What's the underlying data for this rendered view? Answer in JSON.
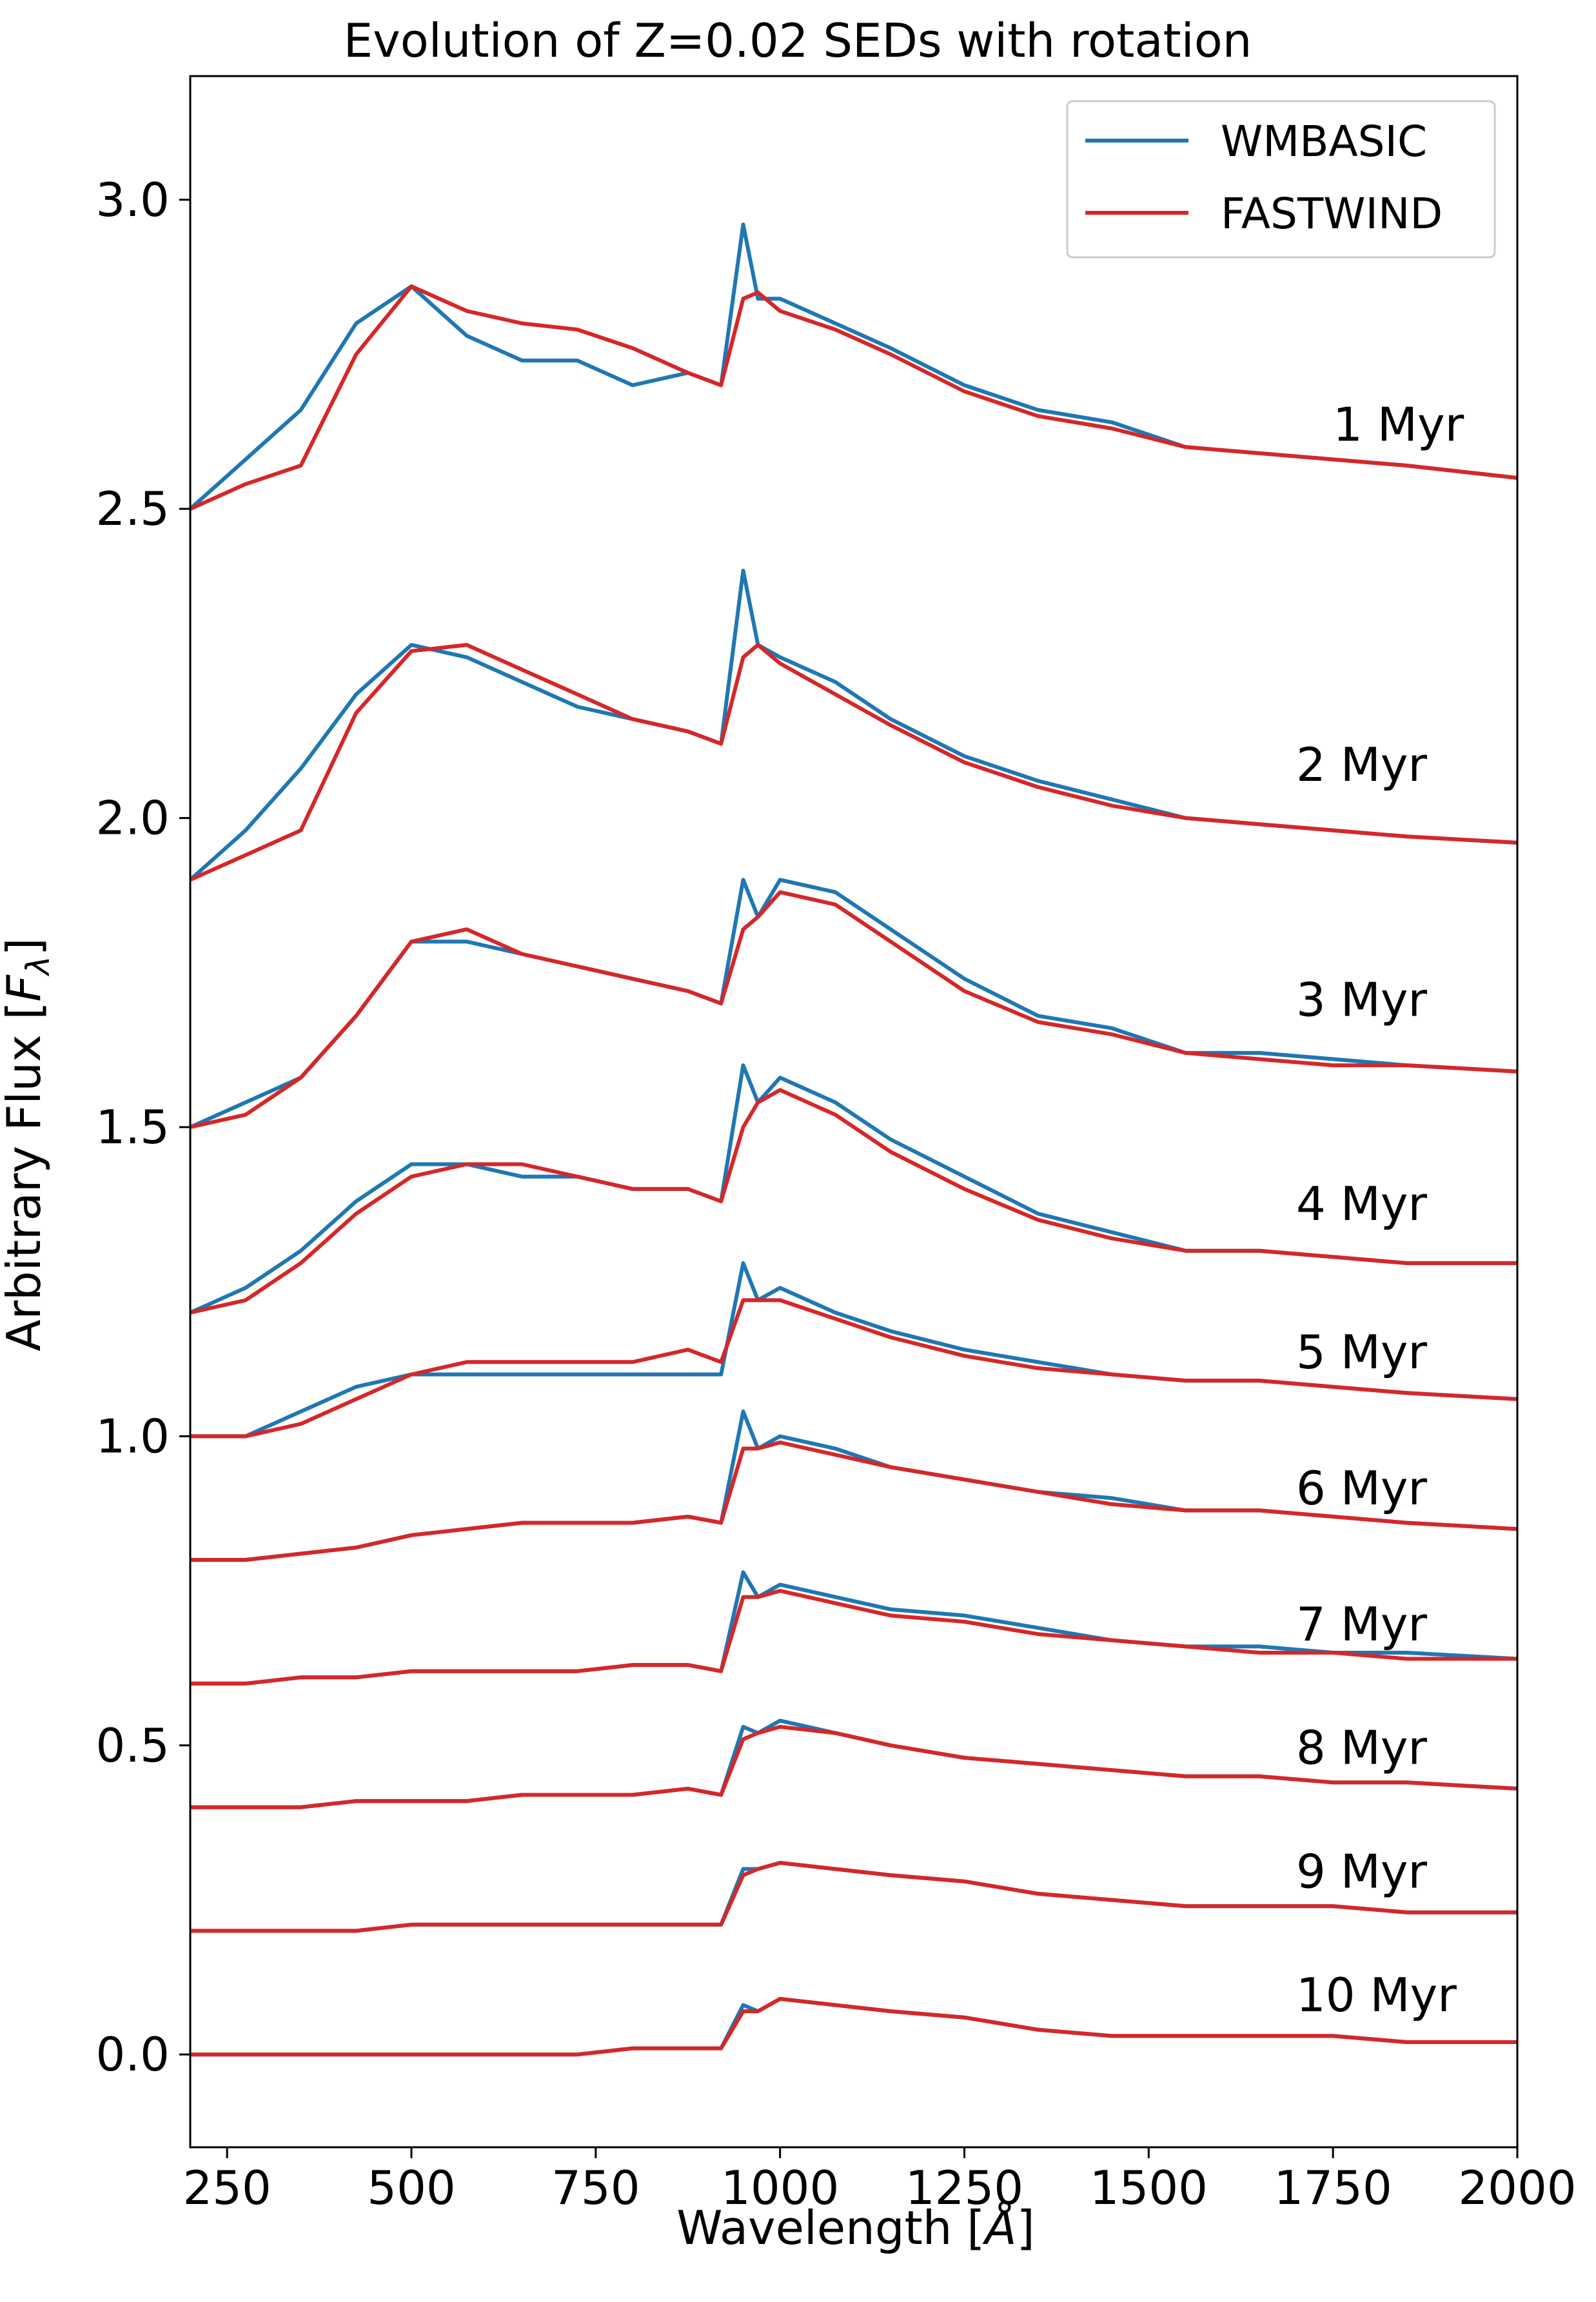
{
  "chart_data": {
    "type": "line",
    "title": "Evolution of Z=0.02 SEDs with rotation",
    "xlabel": "Wavelength [Å]",
    "ylabel": "Arbitrary Flux [F_λ]",
    "ylabel_parts": {
      "main": "Arbitrary Flux [",
      "italic": "F",
      "sub": "λ",
      "end": "]"
    },
    "xlabel_parts": {
      "main": "Wavelength [",
      "italic": "Å",
      "end": "]"
    },
    "xlim": [
      200,
      2000
    ],
    "ylim": [
      -0.15,
      3.2
    ],
    "xticks": [
      250,
      500,
      750,
      1000,
      1250,
      1500,
      1750,
      2000
    ],
    "yticks": [
      0.0,
      0.5,
      1.0,
      1.5,
      2.0,
      2.5,
      3.0
    ],
    "ytick_labels": [
      "0.0",
      "0.5",
      "1.0",
      "1.5",
      "2.0",
      "2.5",
      "3.0"
    ],
    "legend": {
      "position": "top-right",
      "entries": [
        {
          "name": "WMBASIC",
          "color": "#1f77b4"
        },
        {
          "name": "FASTWIND",
          "color": "#d62728"
        }
      ]
    },
    "series_colors": {
      "WMBASIC": "#1f77b4",
      "FASTWIND": "#d62728"
    },
    "x": [
      200,
      275,
      350,
      425,
      500,
      575,
      650,
      725,
      800,
      875,
      920,
      950,
      970,
      1000,
      1075,
      1150,
      1250,
      1350,
      1450,
      1550,
      1650,
      1750,
      1850,
      2000
    ],
    "age_labels": [
      "1 Myr",
      "2 Myr",
      "3 Myr",
      "4 Myr",
      "5 Myr",
      "6 Myr",
      "7 Myr",
      "8 Myr",
      "9 Myr",
      "10 Myr"
    ],
    "label_y": [
      2.61,
      2.06,
      1.68,
      1.35,
      1.11,
      0.89,
      0.67,
      0.47,
      0.27,
      0.07
    ],
    "annotations_x": [
      1750,
      1700,
      1700,
      1700,
      1700,
      1700,
      1700,
      1700,
      1700,
      1700
    ],
    "series": [
      {
        "age": "1 Myr",
        "name": "WMBASIC",
        "values": [
          2.5,
          2.58,
          2.66,
          2.8,
          2.86,
          2.78,
          2.74,
          2.74,
          2.7,
          2.72,
          2.7,
          2.96,
          2.84,
          2.84,
          2.8,
          2.76,
          2.7,
          2.66,
          2.64,
          2.6,
          2.59,
          2.58,
          2.57,
          2.55
        ]
      },
      {
        "age": "1 Myr",
        "name": "FASTWIND",
        "values": [
          2.5,
          2.54,
          2.57,
          2.75,
          2.86,
          2.82,
          2.8,
          2.79,
          2.76,
          2.72,
          2.7,
          2.84,
          2.85,
          2.82,
          2.79,
          2.75,
          2.69,
          2.65,
          2.63,
          2.6,
          2.59,
          2.58,
          2.57,
          2.55
        ]
      },
      {
        "age": "2 Myr",
        "name": "WMBASIC",
        "values": [
          1.9,
          1.98,
          2.08,
          2.2,
          2.28,
          2.26,
          2.22,
          2.18,
          2.16,
          2.14,
          2.12,
          2.4,
          2.28,
          2.26,
          2.22,
          2.16,
          2.1,
          2.06,
          2.03,
          2.0,
          1.99,
          1.98,
          1.97,
          1.96
        ]
      },
      {
        "age": "2 Myr",
        "name": "FASTWIND",
        "values": [
          1.9,
          1.94,
          1.98,
          2.17,
          2.27,
          2.28,
          2.24,
          2.2,
          2.16,
          2.14,
          2.12,
          2.26,
          2.28,
          2.25,
          2.2,
          2.15,
          2.09,
          2.05,
          2.02,
          2.0,
          1.99,
          1.98,
          1.97,
          1.96
        ]
      },
      {
        "age": "3 Myr",
        "name": "WMBASIC",
        "values": [
          1.5,
          1.54,
          1.58,
          1.68,
          1.8,
          1.8,
          1.78,
          1.76,
          1.74,
          1.72,
          1.7,
          1.9,
          1.84,
          1.9,
          1.88,
          1.82,
          1.74,
          1.68,
          1.66,
          1.62,
          1.62,
          1.61,
          1.6,
          1.59
        ]
      },
      {
        "age": "3 Myr",
        "name": "FASTWIND",
        "values": [
          1.5,
          1.52,
          1.58,
          1.68,
          1.8,
          1.82,
          1.78,
          1.76,
          1.74,
          1.72,
          1.7,
          1.82,
          1.84,
          1.88,
          1.86,
          1.8,
          1.72,
          1.67,
          1.65,
          1.62,
          1.61,
          1.6,
          1.6,
          1.59
        ]
      },
      {
        "age": "4 Myr",
        "name": "WMBASIC",
        "values": [
          1.2,
          1.24,
          1.3,
          1.38,
          1.44,
          1.44,
          1.42,
          1.42,
          1.4,
          1.4,
          1.38,
          1.6,
          1.54,
          1.58,
          1.54,
          1.48,
          1.42,
          1.36,
          1.33,
          1.3,
          1.3,
          1.29,
          1.28,
          1.28
        ]
      },
      {
        "age": "4 Myr",
        "name": "FASTWIND",
        "values": [
          1.2,
          1.22,
          1.28,
          1.36,
          1.42,
          1.44,
          1.44,
          1.42,
          1.4,
          1.4,
          1.38,
          1.5,
          1.54,
          1.56,
          1.52,
          1.46,
          1.4,
          1.35,
          1.32,
          1.3,
          1.3,
          1.29,
          1.28,
          1.28
        ]
      },
      {
        "age": "5 Myr",
        "name": "WMBASIC",
        "values": [
          1.0,
          1.0,
          1.04,
          1.08,
          1.1,
          1.1,
          1.1,
          1.1,
          1.1,
          1.1,
          1.1,
          1.28,
          1.22,
          1.24,
          1.2,
          1.17,
          1.14,
          1.12,
          1.1,
          1.09,
          1.09,
          1.08,
          1.07,
          1.06
        ]
      },
      {
        "age": "5 Myr",
        "name": "FASTWIND",
        "values": [
          1.0,
          1.0,
          1.02,
          1.06,
          1.1,
          1.12,
          1.12,
          1.12,
          1.12,
          1.14,
          1.12,
          1.22,
          1.22,
          1.22,
          1.19,
          1.16,
          1.13,
          1.11,
          1.1,
          1.09,
          1.09,
          1.08,
          1.07,
          1.06
        ]
      },
      {
        "age": "6 Myr",
        "name": "WMBASIC",
        "values": [
          0.8,
          0.8,
          0.81,
          0.82,
          0.84,
          0.85,
          0.86,
          0.86,
          0.86,
          0.87,
          0.86,
          1.04,
          0.98,
          1.0,
          0.98,
          0.95,
          0.93,
          0.91,
          0.9,
          0.88,
          0.88,
          0.87,
          0.86,
          0.85
        ]
      },
      {
        "age": "6 Myr",
        "name": "FASTWIND",
        "values": [
          0.8,
          0.8,
          0.81,
          0.82,
          0.84,
          0.85,
          0.86,
          0.86,
          0.86,
          0.87,
          0.86,
          0.98,
          0.98,
          0.99,
          0.97,
          0.95,
          0.93,
          0.91,
          0.89,
          0.88,
          0.88,
          0.87,
          0.86,
          0.85
        ]
      },
      {
        "age": "7 Myr",
        "name": "WMBASIC",
        "values": [
          0.6,
          0.6,
          0.61,
          0.61,
          0.62,
          0.62,
          0.62,
          0.62,
          0.63,
          0.63,
          0.62,
          0.78,
          0.74,
          0.76,
          0.74,
          0.72,
          0.71,
          0.69,
          0.67,
          0.66,
          0.66,
          0.65,
          0.65,
          0.64
        ]
      },
      {
        "age": "7 Myr",
        "name": "FASTWIND",
        "values": [
          0.6,
          0.6,
          0.61,
          0.61,
          0.62,
          0.62,
          0.62,
          0.62,
          0.63,
          0.63,
          0.62,
          0.74,
          0.74,
          0.75,
          0.73,
          0.71,
          0.7,
          0.68,
          0.67,
          0.66,
          0.65,
          0.65,
          0.64,
          0.64
        ]
      },
      {
        "age": "8 Myr",
        "name": "WMBASIC",
        "values": [
          0.4,
          0.4,
          0.4,
          0.41,
          0.41,
          0.41,
          0.42,
          0.42,
          0.42,
          0.43,
          0.42,
          0.53,
          0.52,
          0.54,
          0.52,
          0.5,
          0.48,
          0.47,
          0.46,
          0.45,
          0.45,
          0.44,
          0.44,
          0.43
        ]
      },
      {
        "age": "8 Myr",
        "name": "FASTWIND",
        "values": [
          0.4,
          0.4,
          0.4,
          0.41,
          0.41,
          0.41,
          0.42,
          0.42,
          0.42,
          0.43,
          0.42,
          0.51,
          0.52,
          0.53,
          0.52,
          0.5,
          0.48,
          0.47,
          0.46,
          0.45,
          0.45,
          0.44,
          0.44,
          0.43
        ]
      },
      {
        "age": "9 Myr",
        "name": "WMBASIC",
        "values": [
          0.2,
          0.2,
          0.2,
          0.2,
          0.21,
          0.21,
          0.21,
          0.21,
          0.21,
          0.21,
          0.21,
          0.3,
          0.3,
          0.31,
          0.3,
          0.29,
          0.28,
          0.26,
          0.25,
          0.24,
          0.24,
          0.24,
          0.23,
          0.23
        ]
      },
      {
        "age": "9 Myr",
        "name": "FASTWIND",
        "values": [
          0.2,
          0.2,
          0.2,
          0.2,
          0.21,
          0.21,
          0.21,
          0.21,
          0.21,
          0.21,
          0.21,
          0.29,
          0.3,
          0.31,
          0.3,
          0.29,
          0.28,
          0.26,
          0.25,
          0.24,
          0.24,
          0.24,
          0.23,
          0.23
        ]
      },
      {
        "age": "10 Myr",
        "name": "WMBASIC",
        "values": [
          0.0,
          0.0,
          0.0,
          0.0,
          0.0,
          0.0,
          0.0,
          0.0,
          0.01,
          0.01,
          0.01,
          0.08,
          0.07,
          0.09,
          0.08,
          0.07,
          0.06,
          0.04,
          0.03,
          0.03,
          0.03,
          0.03,
          0.02,
          0.02
        ]
      },
      {
        "age": "10 Myr",
        "name": "FASTWIND",
        "values": [
          0.0,
          0.0,
          0.0,
          0.0,
          0.0,
          0.0,
          0.0,
          0.0,
          0.01,
          0.01,
          0.01,
          0.07,
          0.07,
          0.09,
          0.08,
          0.07,
          0.06,
          0.04,
          0.03,
          0.03,
          0.03,
          0.03,
          0.02,
          0.02
        ]
      }
    ]
  }
}
